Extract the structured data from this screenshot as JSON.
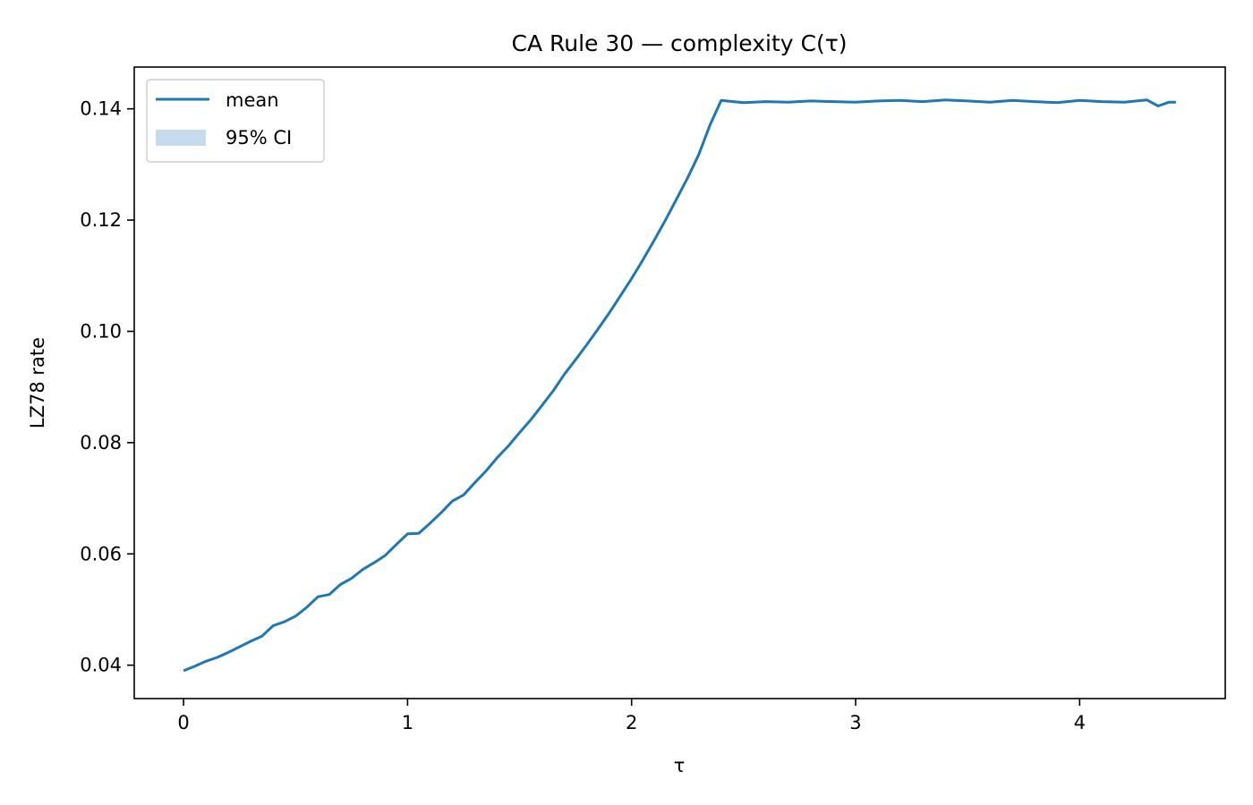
{
  "chart_data": {
    "type": "line",
    "title": "CA Rule 30 — complexity C(τ)",
    "xlabel": "τ",
    "ylabel": "LZ78 rate",
    "xlim": [
      -0.22,
      4.65
    ],
    "ylim": [
      0.034,
      0.1475
    ],
    "xticks": [
      0,
      1,
      2,
      3,
      4
    ],
    "xtick_labels": [
      "0",
      "1",
      "2",
      "3",
      "4"
    ],
    "yticks": [
      0.04,
      0.06,
      0.08,
      0.1,
      0.12,
      0.14
    ],
    "ytick_labels": [
      "0.04",
      "0.06",
      "0.08",
      "0.10",
      "0.12",
      "0.14"
    ],
    "grid": false,
    "legend": {
      "position": "top-left",
      "entries": [
        {
          "label": "mean",
          "kind": "line"
        },
        {
          "label": "95% CI",
          "kind": "band"
        }
      ]
    },
    "colors": {
      "mean": "#1f77b4",
      "ci": "#c6dbeb"
    },
    "series": [
      {
        "name": "mean",
        "x": [
          0,
          0.05,
          0.1,
          0.15,
          0.2,
          0.25,
          0.3,
          0.35,
          0.4,
          0.45,
          0.5,
          0.55,
          0.6,
          0.65,
          0.7,
          0.75,
          0.8,
          0.85,
          0.9,
          0.95,
          1.0,
          1.05,
          1.1,
          1.15,
          1.2,
          1.25,
          1.3,
          1.35,
          1.4,
          1.45,
          1.5,
          1.55,
          1.6,
          1.65,
          1.7,
          1.75,
          1.8,
          1.85,
          1.9,
          1.95,
          2.0,
          2.05,
          2.1,
          2.15,
          2.2,
          2.25,
          2.3,
          2.35,
          2.4,
          2.5,
          2.6,
          2.7,
          2.8,
          2.9,
          3.0,
          3.1,
          3.2,
          3.3,
          3.4,
          3.5,
          3.6,
          3.7,
          3.8,
          3.9,
          4.0,
          4.1,
          4.2,
          4.3,
          4.35,
          4.4,
          4.43
        ],
        "y": [
          0.039,
          0.0398,
          0.0407,
          0.0414,
          0.0423,
          0.0433,
          0.0443,
          0.0452,
          0.0471,
          0.0478,
          0.0488,
          0.0504,
          0.0523,
          0.0527,
          0.0545,
          0.0556,
          0.0572,
          0.0584,
          0.0597,
          0.0617,
          0.0636,
          0.0637,
          0.0655,
          0.0674,
          0.0695,
          0.0706,
          0.0728,
          0.0749,
          0.0773,
          0.0794,
          0.0818,
          0.0841,
          0.0867,
          0.0893,
          0.0923,
          0.0949,
          0.0976,
          0.1004,
          0.1033,
          0.1064,
          0.1095,
          0.1128,
          0.1163,
          0.1199,
          0.1237,
          0.1276,
          0.1318,
          0.1371,
          0.1415,
          0.1411,
          0.1413,
          0.1412,
          0.1414,
          0.1413,
          0.1412,
          0.1414,
          0.1415,
          0.1413,
          0.1416,
          0.1414,
          0.1412,
          0.1415,
          0.1413,
          0.1411,
          0.1415,
          0.1413,
          0.1412,
          0.1416,
          0.1405,
          0.1412,
          0.1412
        ]
      }
    ]
  }
}
